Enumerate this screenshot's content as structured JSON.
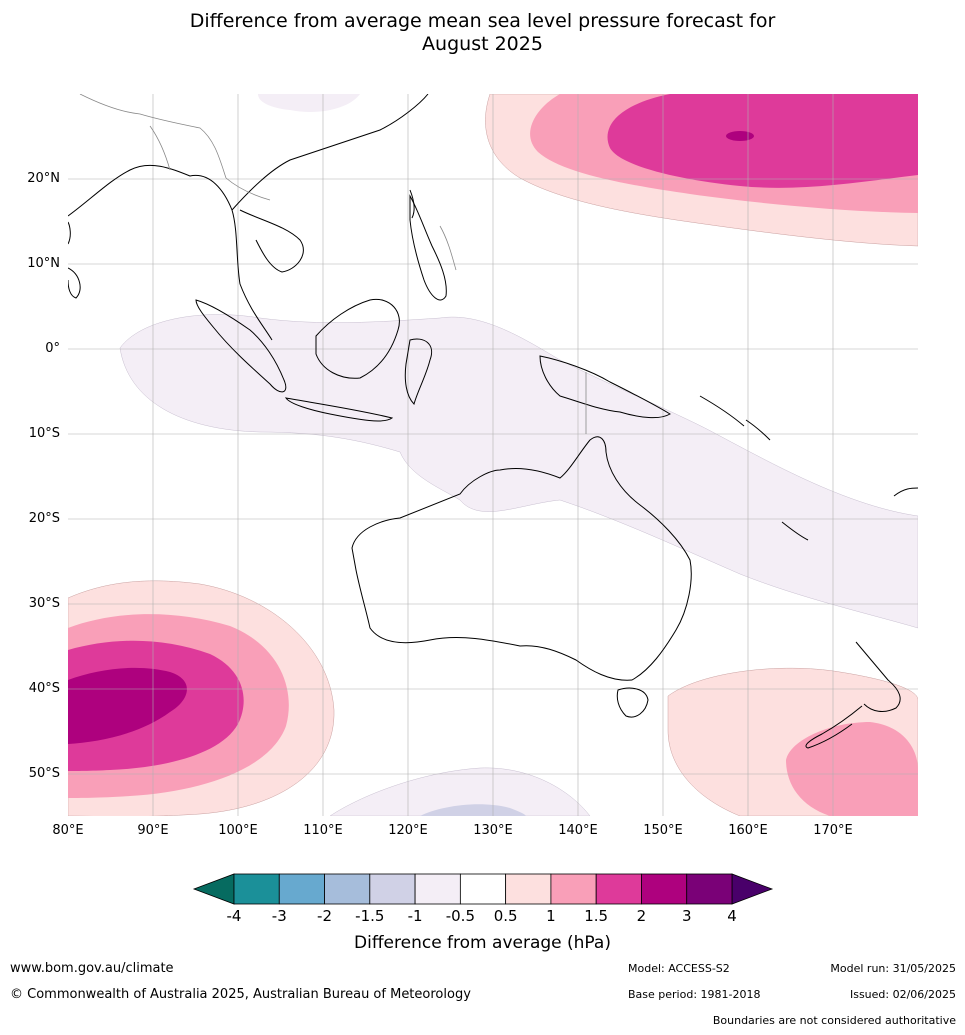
{
  "title_line1": "Difference from average mean sea level pressure forecast for",
  "title_line2": "August 2025",
  "lat_labels": [
    "20°N",
    "10°N",
    "0°",
    "10°S",
    "20°S",
    "30°S",
    "40°S",
    "50°S"
  ],
  "lon_labels": [
    "80°E",
    "90°E",
    "100°E",
    "110°E",
    "120°E",
    "130°E",
    "140°E",
    "150°E",
    "160°E",
    "170°E"
  ],
  "colorbar": {
    "ticks": [
      "-4",
      "-3",
      "-2",
      "-1.5",
      "-1",
      "-0.5",
      "0.5",
      "1",
      "1.5",
      "2",
      "3",
      "4"
    ],
    "colors": [
      "#1b9099",
      "#67a9cf",
      "#a6bddb",
      "#d0d1e6",
      "#f4eef6",
      "#ffffff",
      "#fde0df",
      "#f99fb8",
      "#de3a9a",
      "#ae017e",
      "#7a0177"
    ],
    "min_color": "#066b60",
    "max_color": "#49006a",
    "label": "Difference from average (hPa)"
  },
  "footer": {
    "website": "www.bom.gov.au/climate",
    "copyright": "© Commonwealth of Australia 2025, Australian Bureau of Meteorology",
    "model": "Model: ACCESS-S2",
    "base_period": "Base period: 1981-2018",
    "model_run": "Model run: 31/05/2025",
    "issued": "Issued: 02/06/2025",
    "disclaimer": "Boundaries are not considered authoritative"
  }
}
